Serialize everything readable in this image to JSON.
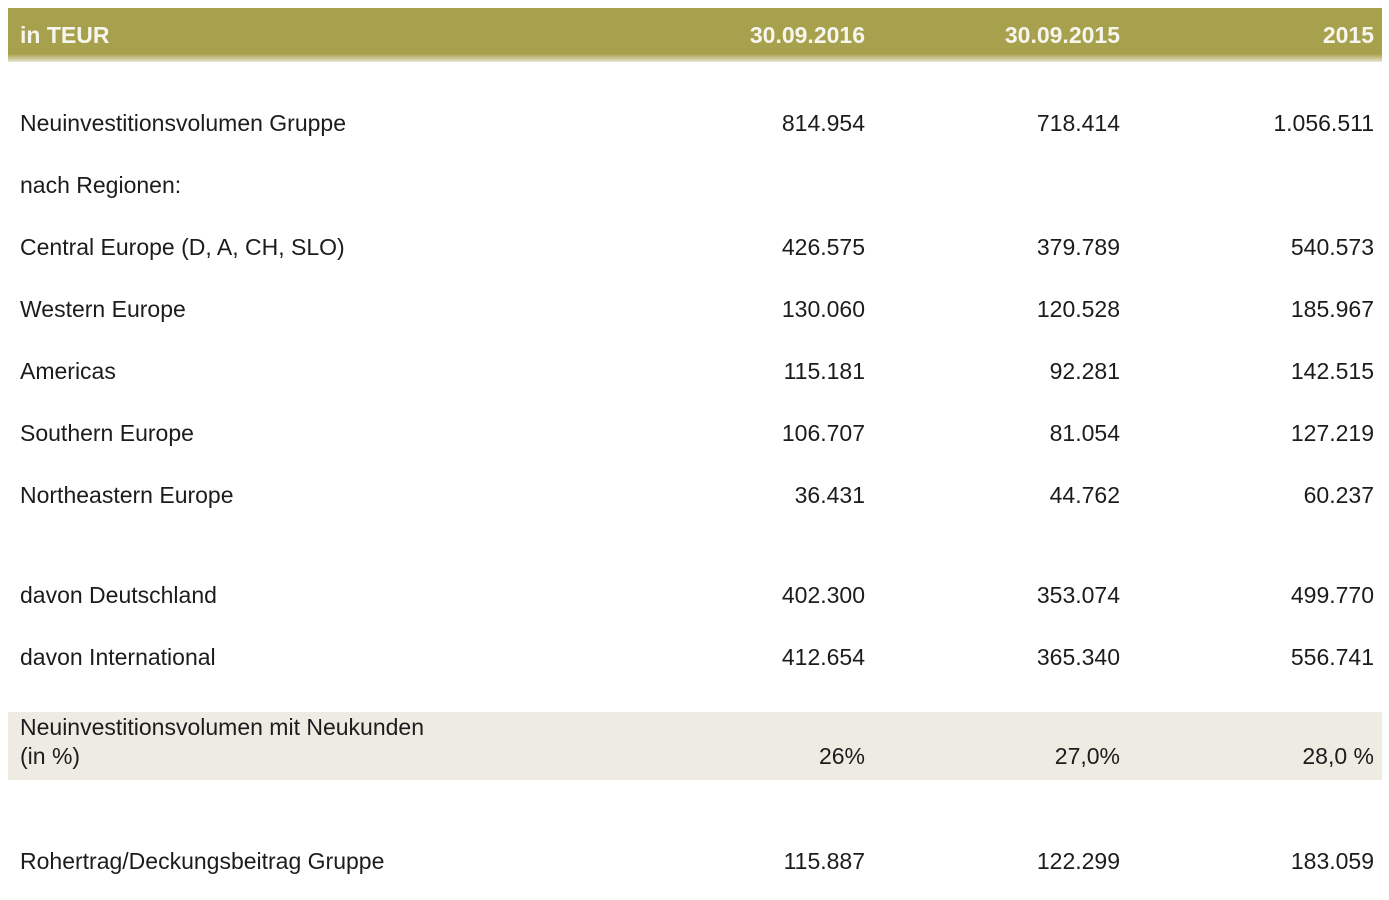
{
  "table": {
    "unit_label": "in TEUR",
    "columns": [
      "30.09.2016",
      "30.09.2015",
      "2015"
    ],
    "colors": {
      "header_bg": "#a7a14d",
      "header_text": "#f7f6ee",
      "highlight_row_bg": "#eeebe3",
      "body_text": "#1c1c1c"
    },
    "rows": [
      {
        "label": "Neuinvestitionsvolumen Gruppe",
        "values": [
          "814.954",
          "718.414",
          "1.056.511"
        ]
      },
      {
        "label": "nach Regionen:",
        "values": [
          "",
          "",
          ""
        ]
      },
      {
        "label": "Central Europe (D, A, CH, SLO)",
        "values": [
          "426.575",
          "379.789",
          "540.573"
        ]
      },
      {
        "label": "Western Europe",
        "values": [
          "130.060",
          "120.528",
          "185.967"
        ]
      },
      {
        "label": "Americas",
        "values": [
          "115.181",
          "92.281",
          "142.515"
        ]
      },
      {
        "label": "Southern Europe",
        "values": [
          "106.707",
          "81.054",
          "127.219"
        ]
      },
      {
        "label": "Northeastern Europe",
        "values": [
          "36.431",
          "44.762",
          "60.237"
        ]
      },
      {
        "label": "davon Deutschland",
        "values": [
          "402.300",
          "353.074",
          "499.770"
        ]
      },
      {
        "label": "davon International",
        "values": [
          "412.654",
          "365.340",
          "556.741"
        ]
      },
      {
        "label_line1": "Neuinvestitionsvolumen mit Neukunden",
        "label_line2": "(in %)",
        "highlight": true,
        "values": [
          "26%",
          "27,0%",
          "28,0 %"
        ]
      },
      {
        "label": "Rohertrag/Deckungsbeitrag Gruppe",
        "values": [
          "115.887",
          "122.299",
          "183.059"
        ]
      }
    ]
  }
}
